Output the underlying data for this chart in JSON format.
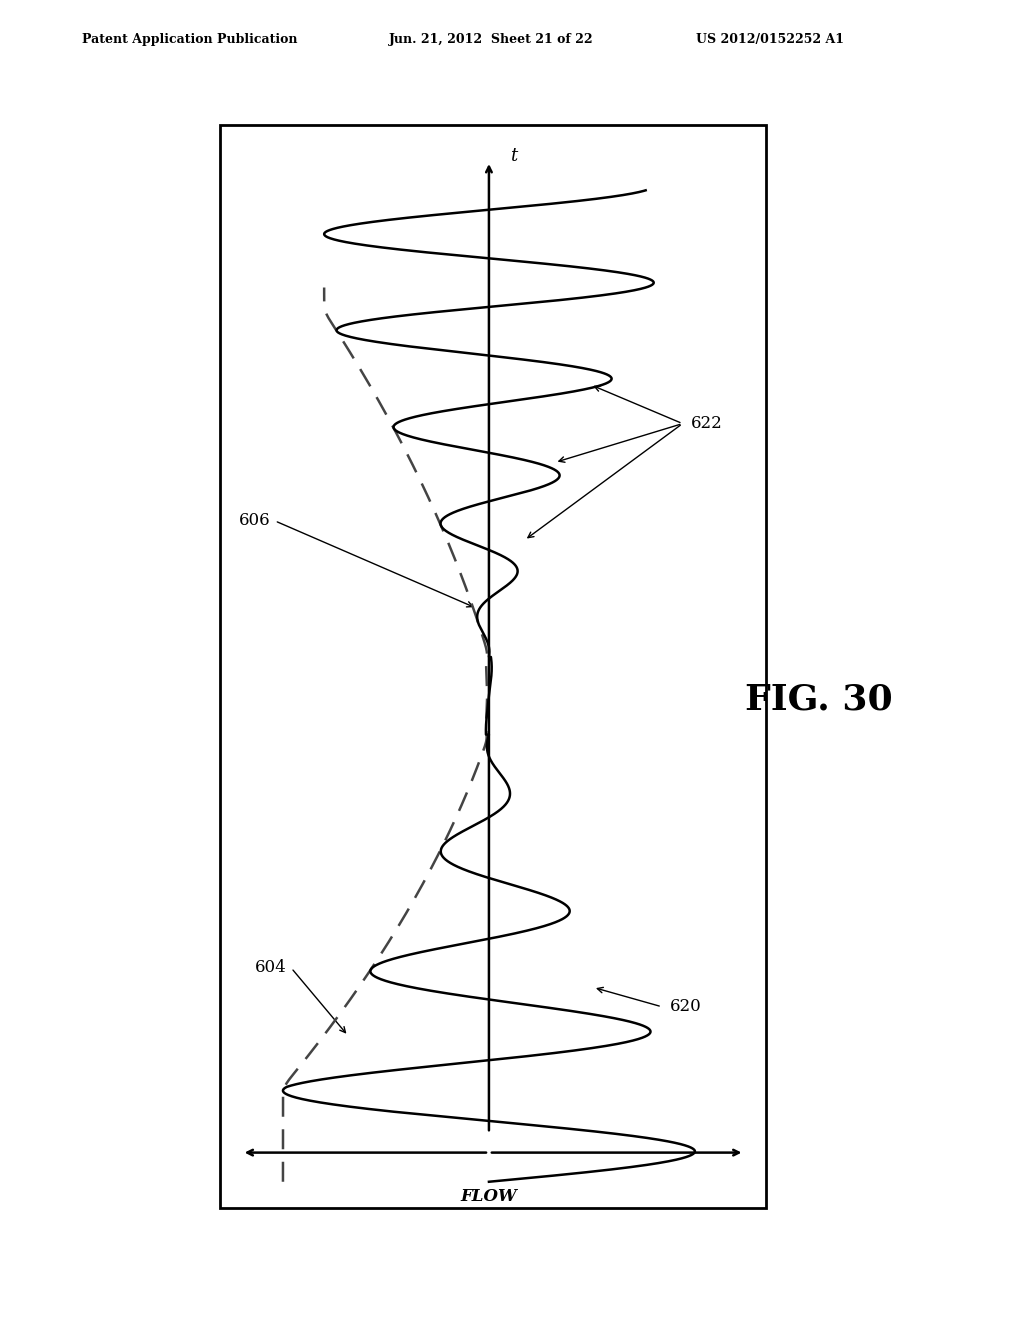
{
  "header_left": "Patent Application Publication",
  "header_center": "Jun. 21, 2012  Sheet 21 of 22",
  "header_right": "US 2012/0152252 A1",
  "fig_label": "FIG. 30",
  "label_t": "t",
  "label_flow": "FLOW",
  "label_606": "606",
  "label_604": "604",
  "label_622": "622",
  "label_620": "620",
  "bg_color": "#ffffff",
  "line_color": "#000000",
  "dashed_color": "#444444"
}
